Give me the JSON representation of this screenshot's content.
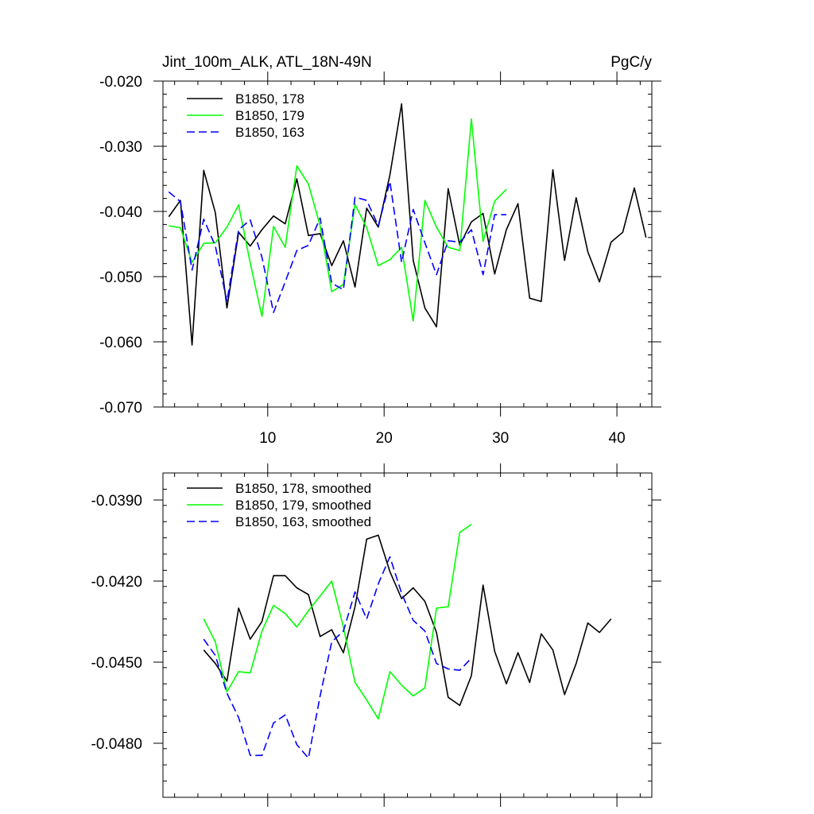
{
  "chart_data": [
    {
      "type": "line",
      "title": "Jint_100m_ALK, ATL_18N-49N",
      "units": "PgC/y",
      "xlim": [
        1,
        43
      ],
      "ylim": [
        -0.07,
        -0.02
      ],
      "xticks": [
        10,
        20,
        30,
        40
      ],
      "xtick_labels": [
        "10",
        "20",
        "30",
        "40"
      ],
      "yticks": [
        -0.07,
        -0.06,
        -0.05,
        -0.04,
        -0.03,
        -0.02
      ],
      "ytick_labels": [
        "-0.070",
        "-0.060",
        "-0.050",
        "-0.040",
        "-0.030",
        "-0.020"
      ],
      "series": [
        {
          "name": "B1850, 178",
          "color": "#000000",
          "dash": "solid",
          "x": [
            1.5,
            2.5,
            3.5,
            4.5,
            5.5,
            6.5,
            7.5,
            8.5,
            9.5,
            10.5,
            11.5,
            12.5,
            13.5,
            14.5,
            15.5,
            16.5,
            17.5,
            18.5,
            19.5,
            20.5,
            21.5,
            22.5,
            23.5,
            24.5,
            25.5,
            26.5,
            27.5,
            28.5,
            29.5,
            30.5,
            31.5,
            32.5,
            33.5,
            34.5,
            35.5,
            36.5,
            37.5,
            38.5,
            39.5,
            40.5,
            41.5,
            42.5
          ],
          "values": [
            -0.0408,
            -0.0383,
            -0.0605,
            -0.0337,
            -0.0402,
            -0.0548,
            -0.0432,
            -0.0453,
            -0.0428,
            -0.0407,
            -0.0419,
            -0.035,
            -0.0437,
            -0.0434,
            -0.0483,
            -0.0445,
            -0.0516,
            -0.0395,
            -0.0424,
            -0.0344,
            -0.0235,
            -0.0475,
            -0.0548,
            -0.0577,
            -0.0365,
            -0.0452,
            -0.0416,
            -0.0403,
            -0.0496,
            -0.0428,
            -0.0388,
            -0.0533,
            -0.0538,
            -0.0336,
            -0.0475,
            -0.0379,
            -0.0462,
            -0.0508,
            -0.0447,
            -0.0432,
            -0.0364,
            -0.044
          ]
        },
        {
          "name": "B1850, 179",
          "color": "#00ff00",
          "dash": "solid",
          "x": [
            1.5,
            2.5,
            3.5,
            4.5,
            5.5,
            6.5,
            7.5,
            8.5,
            9.5,
            10.5,
            11.5,
            12.5,
            13.5,
            14.5,
            15.5,
            16.5,
            17.5,
            18.5,
            19.5,
            20.5,
            21.5,
            22.5,
            23.5,
            24.5,
            25.5,
            26.5,
            27.5,
            28.5,
            29.5,
            30.5
          ],
          "values": [
            -0.0422,
            -0.0425,
            -0.0478,
            -0.0449,
            -0.0448,
            -0.0424,
            -0.039,
            -0.0479,
            -0.0561,
            -0.0423,
            -0.0455,
            -0.033,
            -0.0358,
            -0.0422,
            -0.0523,
            -0.0512,
            -0.0389,
            -0.0425,
            -0.0483,
            -0.0474,
            -0.0455,
            -0.0568,
            -0.0383,
            -0.0424,
            -0.0455,
            -0.046,
            -0.0258,
            -0.0446,
            -0.0384,
            -0.0366
          ]
        },
        {
          "name": "B1850, 163",
          "color": "#0000ff",
          "dash": "dashed",
          "x": [
            1.5,
            2.5,
            3.5,
            4.5,
            5.5,
            6.5,
            7.5,
            8.5,
            9.5,
            10.5,
            11.5,
            12.5,
            13.5,
            14.5,
            15.5,
            16.5,
            17.5,
            18.5,
            19.5,
            20.5,
            21.5,
            22.5,
            23.5,
            24.5,
            25.5,
            26.5,
            27.5,
            28.5,
            29.5,
            30.5
          ],
          "values": [
            -0.037,
            -0.0385,
            -0.049,
            -0.0412,
            -0.0453,
            -0.0538,
            -0.0428,
            -0.0413,
            -0.047,
            -0.0555,
            -0.0508,
            -0.046,
            -0.0452,
            -0.041,
            -0.051,
            -0.052,
            -0.0378,
            -0.0383,
            -0.0422,
            -0.0354,
            -0.0478,
            -0.0397,
            -0.0448,
            -0.0497,
            -0.0445,
            -0.0447,
            -0.0428,
            -0.0497,
            -0.0405,
            -0.0405
          ]
        }
      ]
    },
    {
      "type": "line",
      "title": "",
      "xlim": [
        1,
        43
      ],
      "ylim": [
        -0.05,
        -0.038
      ],
      "xticks": [
        10,
        20,
        30,
        40
      ],
      "yticks": [
        -0.048,
        -0.045,
        -0.042,
        -0.039
      ],
      "ytick_labels": [
        "-0.0480",
        "-0.0450",
        "-0.0420",
        "-0.0390"
      ],
      "series": [
        {
          "name": "B1850, 178, smoothed",
          "color": "#000000",
          "dash": "solid",
          "x": [
            4.5,
            5.5,
            6.5,
            7.5,
            8.5,
            9.5,
            10.5,
            11.5,
            12.5,
            13.5,
            14.5,
            15.5,
            16.5,
            17.5,
            18.5,
            19.5,
            20.5,
            21.5,
            22.5,
            23.5,
            24.5,
            25.5,
            26.5,
            27.5,
            28.5,
            29.5,
            30.5,
            31.5,
            32.5,
            33.5,
            34.5,
            35.5,
            36.5,
            37.5,
            38.5,
            39.5
          ],
          "values": [
            -0.04455,
            -0.04505,
            -0.0457,
            -0.043,
            -0.04415,
            -0.0435,
            -0.0418,
            -0.0418,
            -0.04225,
            -0.0425,
            -0.04405,
            -0.0438,
            -0.04465,
            -0.04295,
            -0.04045,
            -0.0403,
            -0.04165,
            -0.04265,
            -0.04225,
            -0.04275,
            -0.0439,
            -0.0463,
            -0.0466,
            -0.0455,
            -0.04215,
            -0.0446,
            -0.0458,
            -0.04465,
            -0.04575,
            -0.04395,
            -0.04455,
            -0.0462,
            -0.04505,
            -0.04355,
            -0.0439,
            -0.0434
          ]
        },
        {
          "name": "B1850, 179, smoothed",
          "color": "#00ff00",
          "dash": "solid",
          "x": [
            4.5,
            5.5,
            6.5,
            7.5,
            8.5,
            9.5,
            10.5,
            11.5,
            12.5,
            13.5,
            14.5,
            15.5,
            16.5,
            17.5,
            18.5,
            19.5,
            20.5,
            21.5,
            22.5,
            23.5,
            24.5,
            25.5,
            26.5,
            27.5
          ],
          "values": [
            -0.0434,
            -0.04425,
            -0.0461,
            -0.04535,
            -0.0454,
            -0.04385,
            -0.0429,
            -0.0432,
            -0.0437,
            -0.0431,
            -0.04255,
            -0.042,
            -0.0437,
            -0.04575,
            -0.0464,
            -0.0471,
            -0.04535,
            -0.04585,
            -0.04625,
            -0.04595,
            -0.043,
            -0.04295,
            -0.0402,
            -0.0399
          ]
        },
        {
          "name": "B1850, 163, smoothed",
          "color": "#0000ff",
          "dash": "dashed",
          "x": [
            4.5,
            5.5,
            6.5,
            7.5,
            8.5,
            9.5,
            10.5,
            11.5,
            12.5,
            13.5,
            14.5,
            15.5,
            16.5,
            17.5,
            18.5,
            19.5,
            20.5,
            21.5,
            22.5,
            23.5,
            24.5,
            25.5,
            26.5,
            27.5
          ],
          "values": [
            -0.04415,
            -0.04475,
            -0.04615,
            -0.04705,
            -0.04845,
            -0.04845,
            -0.04725,
            -0.04695,
            -0.04805,
            -0.04855,
            -0.04625,
            -0.04425,
            -0.04385,
            -0.0424,
            -0.0434,
            -0.0421,
            -0.0411,
            -0.04245,
            -0.04345,
            -0.04385,
            -0.04505,
            -0.04525,
            -0.0453,
            -0.04485
          ]
        }
      ]
    }
  ]
}
